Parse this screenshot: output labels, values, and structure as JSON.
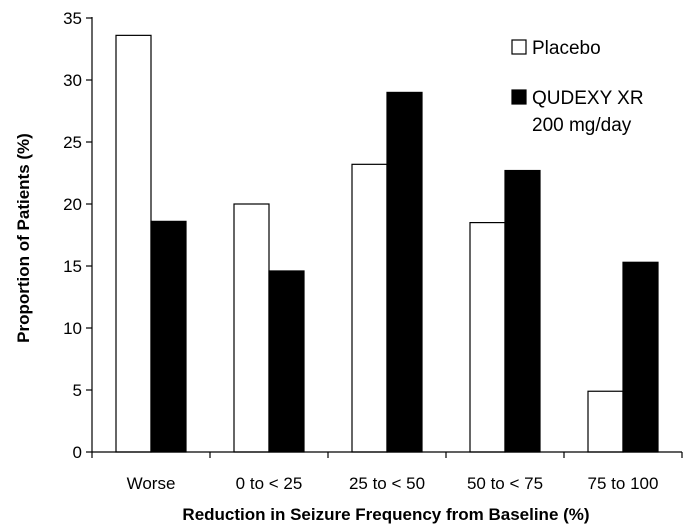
{
  "chart_data": {
    "type": "bar",
    "title": "",
    "xlabel": "Reduction in Seizure Frequency from Baseline (%)",
    "ylabel": "Proportion of Patients (%)",
    "categories": [
      "Worse",
      "0 to < 25",
      "25 to < 50",
      "50 to < 75",
      "75 to 100"
    ],
    "ylim": [
      0,
      35
    ],
    "yticks": [
      0,
      5,
      10,
      15,
      20,
      25,
      30,
      35
    ],
    "grid": false,
    "legend_position": "top-right",
    "series": [
      {
        "name": "Placebo",
        "legend_lines": [
          "Placebo"
        ],
        "color": "#ffffff",
        "stroke": "#000000",
        "values": [
          33.6,
          20.0,
          23.2,
          18.5,
          4.9
        ]
      },
      {
        "name": "QUDEXY XR 200 mg/day",
        "legend_lines": [
          "QUDEXY XR",
          "200 mg/day"
        ],
        "color": "#000000",
        "stroke": "#000000",
        "values": [
          18.6,
          14.6,
          29.0,
          22.7,
          15.3
        ]
      }
    ]
  }
}
